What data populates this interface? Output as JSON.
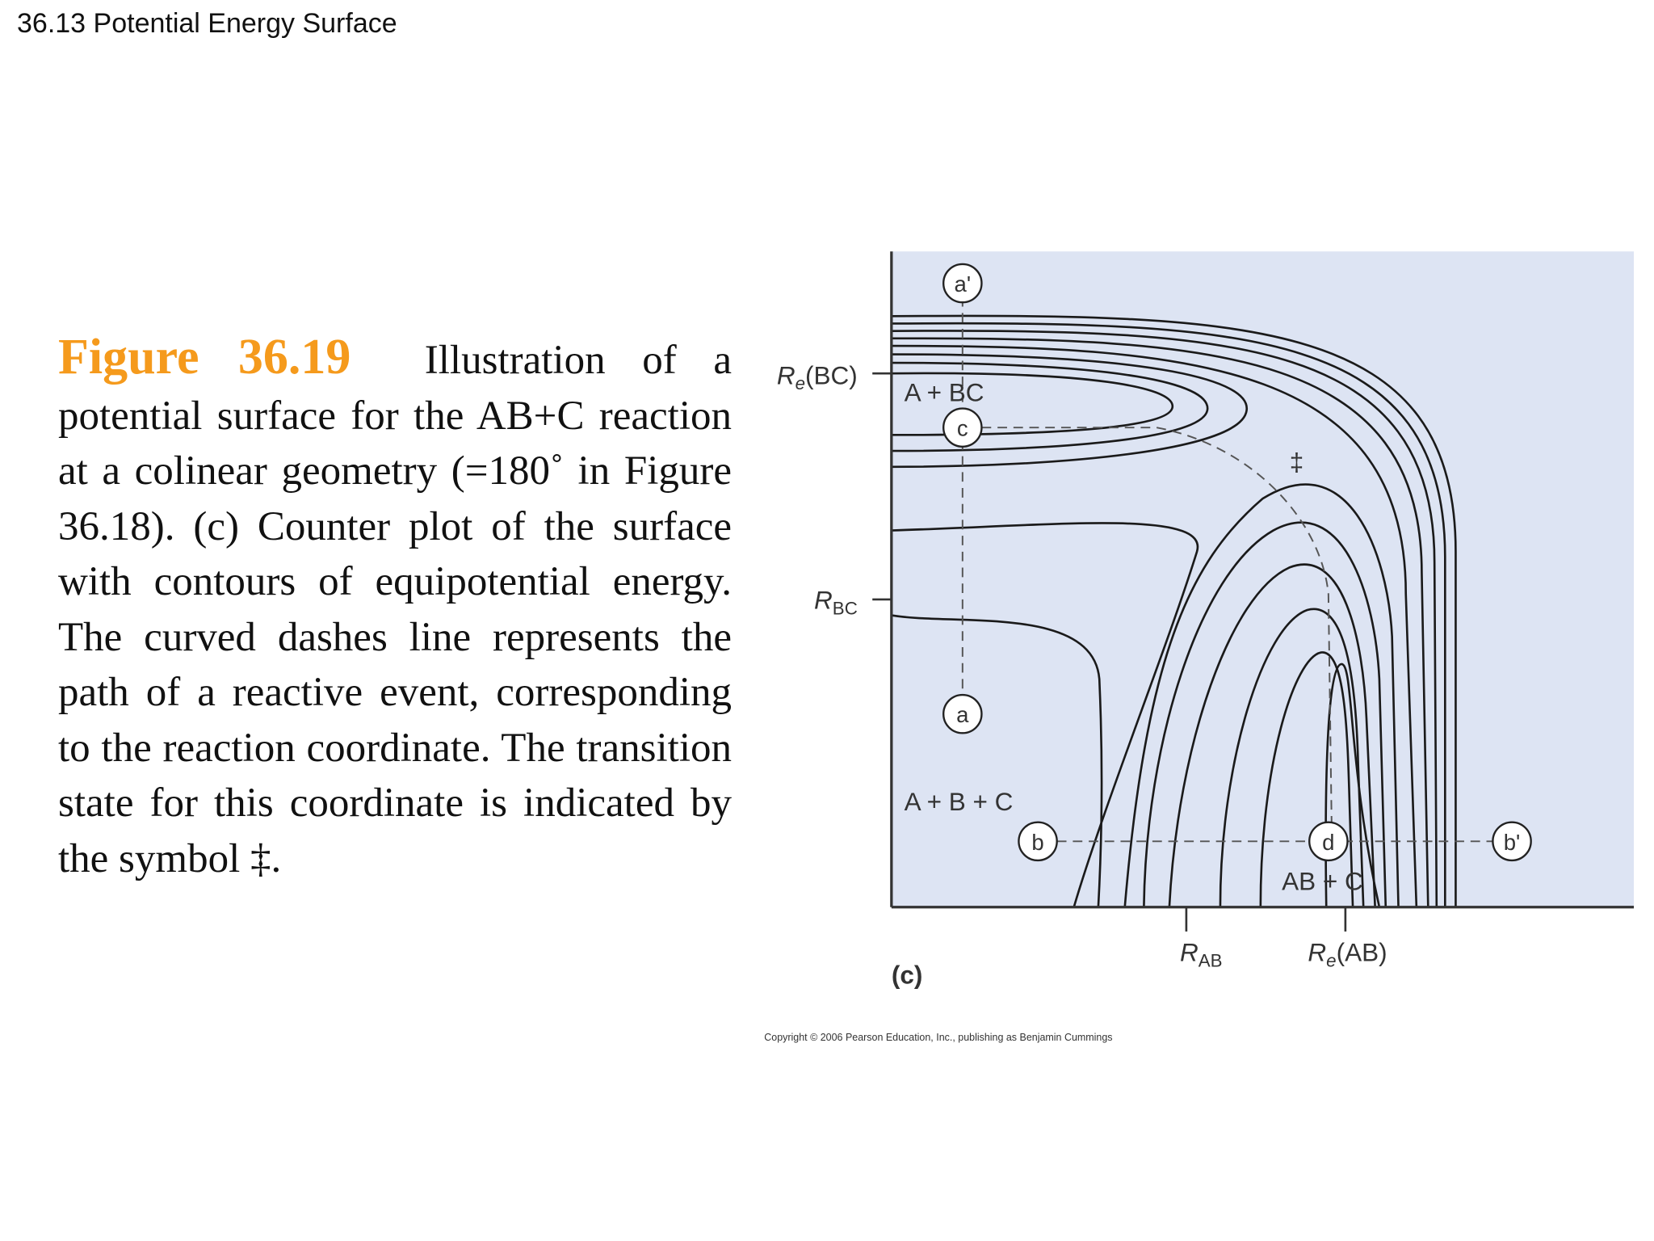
{
  "header": {
    "title": "36.13 Potential Energy Surface"
  },
  "caption": {
    "label": "Figure 36.19",
    "text": "Illustration of a potential surface for the AB+C reaction at a colinear geometry (=180˚ in Figure 36.18). (c) Counter plot of the surface with contours of equipotential energy. The curved dashes line represents the path of a reactive event, corresponding to the reaction coordinate. The transition state for this coordinate is indicated by the symbol ‡."
  },
  "figure": {
    "axis_labels": [
      {
        "symbol": "R",
        "subscript": "e",
        "suffix": "(BC)"
      },
      {
        "symbol": "R",
        "subscript": "BC"
      },
      {
        "symbol": "R",
        "subscript": "AB"
      },
      {
        "symbol": "R",
        "subscript": "e",
        "suffix": "(AB)"
      }
    ],
    "regions": [
      "A + BC",
      "A + B + C",
      "AB + C"
    ],
    "points": [
      "a'",
      "c",
      "a",
      "b",
      "d",
      "b'"
    ],
    "transition_state": "‡",
    "panel": "(c)",
    "copyright": "Copyright © 2006 Pearson Education, Inc., publishing as Benjamin Cummings"
  }
}
